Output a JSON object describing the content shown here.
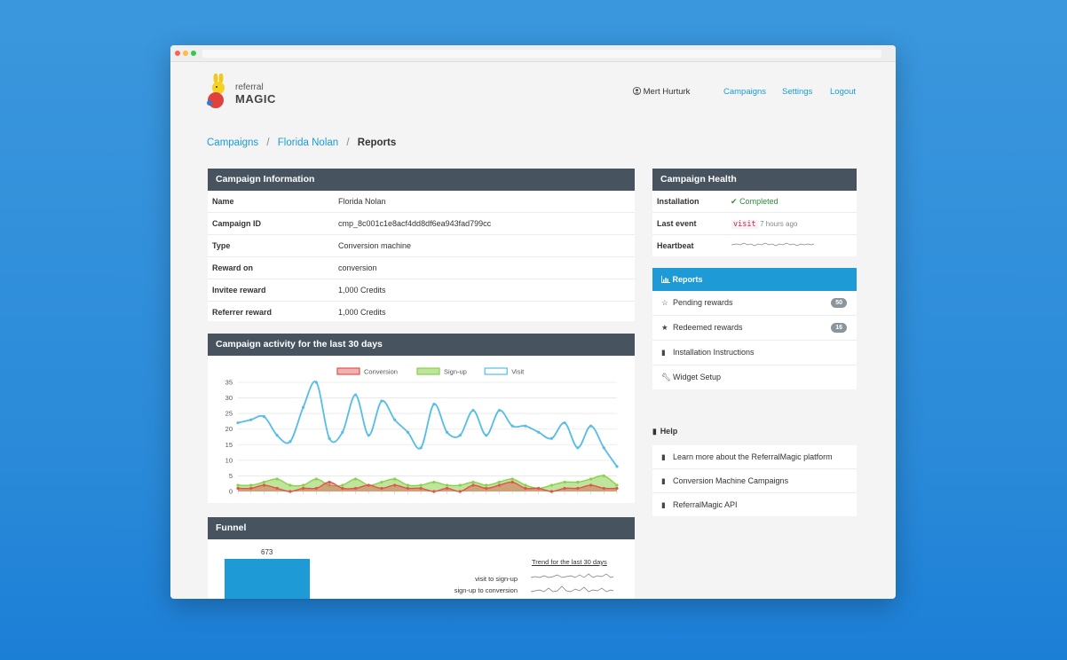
{
  "window": {
    "dots": [
      "#fc605c",
      "#fdbc40",
      "#34c84a"
    ]
  },
  "logo": {
    "line1": "referral",
    "line2": "MAGIC"
  },
  "nav": {
    "user": "Mert Hurturk",
    "campaigns": "Campaigns",
    "settings": "Settings",
    "logout": "Logout"
  },
  "breadcrumb": {
    "first": "Campaigns",
    "second": "Florida Nolan",
    "current": "Reports",
    "sep": "/"
  },
  "campaign_info": {
    "title": "Campaign Information",
    "rows": [
      {
        "key": "Name",
        "value": "Florida Nolan"
      },
      {
        "key": "Campaign ID",
        "value": "cmp_8c001c1e8acf4dd8df6ea943fad799cc"
      },
      {
        "key": "Type",
        "value": "Conversion machine"
      },
      {
        "key": "Reward on",
        "value": "conversion"
      },
      {
        "key": "Invitee reward",
        "value": "1,000 Credits"
      },
      {
        "key": "Referrer reward",
        "value": "1,000 Credits"
      }
    ]
  },
  "activity": {
    "title": "Campaign activity for the last 30 days"
  },
  "funnel": {
    "title": "Funnel",
    "bar_value": "673",
    "trend_title": "Trend for the last 30 days",
    "rows": [
      "visit to sign-up",
      "sign-up to conversion"
    ]
  },
  "health": {
    "title": "Campaign Health",
    "installation_label": "Installation",
    "installation_value": "Completed",
    "last_event_label": "Last event",
    "last_event_code": "visit",
    "last_event_time": "7 hours ago",
    "heartbeat_label": "Heartbeat"
  },
  "reports_menu": {
    "header": "Reports",
    "items": [
      {
        "label": "Pending rewards",
        "badge": "50",
        "icon": "star-outline-icon"
      },
      {
        "label": "Redeemed rewards",
        "badge": "16",
        "icon": "star-icon"
      },
      {
        "label": "Installation Instructions",
        "icon": "book-icon"
      },
      {
        "label": "Widget Setup",
        "icon": "wrench-icon"
      }
    ]
  },
  "help": {
    "title": "Help",
    "items": [
      {
        "label": "Learn more about the ReferralMagic platform"
      },
      {
        "label": "Conversion Machine Campaigns"
      },
      {
        "label": "ReferralMagic API"
      }
    ]
  },
  "colors": {
    "accent": "#1a9bd7",
    "panel_header": "#47545f",
    "bar": "#1e9bd7"
  },
  "chart_data": {
    "type": "line",
    "ylim": [
      0,
      35
    ],
    "yticks": [
      0,
      5,
      10,
      15,
      20,
      25,
      30,
      35
    ],
    "grid": true,
    "legend_position": "top",
    "x": [
      1,
      2,
      3,
      4,
      5,
      6,
      7,
      8,
      9,
      10,
      11,
      12,
      13,
      14,
      15,
      16,
      17,
      18,
      19,
      20,
      21,
      22,
      23,
      24,
      25,
      26,
      27,
      28,
      29,
      30
    ],
    "series": [
      {
        "name": "Conversion",
        "color": "#e0534f",
        "fill": "rgba(224,83,79,0.45)",
        "values": [
          1,
          1,
          2,
          1,
          0,
          1,
          1,
          3,
          1,
          1,
          2,
          1,
          2,
          1,
          1,
          0,
          1,
          0,
          2,
          1,
          2,
          3,
          1,
          1,
          0,
          1,
          1,
          2,
          1,
          1
        ]
      },
      {
        "name": "Sign-up",
        "color": "#8ad04a",
        "fill": "rgba(138,208,74,0.55)",
        "values": [
          2,
          2,
          3,
          4,
          2,
          2,
          4,
          2,
          2,
          4,
          2,
          3,
          4,
          2,
          2,
          3,
          2,
          2,
          3,
          2,
          3,
          4,
          2,
          1,
          2,
          3,
          3,
          4,
          5,
          2
        ]
      },
      {
        "name": "Visit",
        "color": "#55bde8",
        "fill": "none",
        "values": [
          22,
          23,
          24,
          18,
          16,
          27,
          35,
          17,
          19,
          31,
          18,
          29,
          23,
          19,
          14,
          28,
          19,
          18,
          26,
          18,
          26,
          21,
          21,
          19,
          17,
          22,
          14,
          21,
          14,
          8
        ]
      }
    ]
  }
}
